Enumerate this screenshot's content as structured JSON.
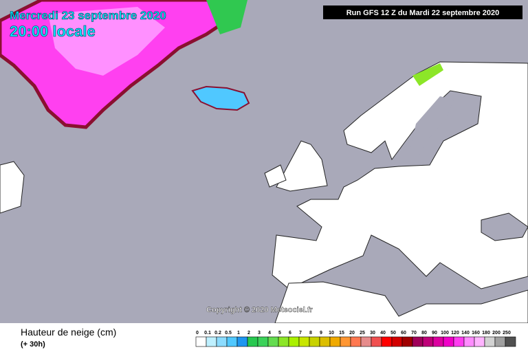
{
  "header": {
    "date": "Mercredi 23 septembre 2020",
    "time": "20:00 locale",
    "run": "Run GFS 12 Z du Mardi 22 septembre 2020"
  },
  "copyright": "Copyright © 2020 Meteociel.fr",
  "legend": {
    "title": "Hauteur de neige (cm)",
    "subtitle": "(+ 30h)",
    "labels": [
      0,
      0.1,
      0.2,
      0.5,
      1,
      2,
      3,
      4,
      5,
      6,
      7,
      8,
      9,
      10,
      15,
      20,
      25,
      30,
      40,
      50,
      60,
      70,
      80,
      90,
      100,
      120,
      140,
      160,
      180,
      200,
      250
    ],
    "colors": [
      "#ffffff",
      "#bef0ff",
      "#8cdcff",
      "#50c8ff",
      "#1e96f0",
      "#28c850",
      "#3cd25a",
      "#64dc50",
      "#8ce628",
      "#aaf000",
      "#c8e600",
      "#c8d200",
      "#dcbe00",
      "#f0aa00",
      "#ff9632",
      "#ff7850",
      "#e68c8c",
      "#f05050",
      "#ff0000",
      "#d20000",
      "#a00000",
      "#a0005a",
      "#be0078",
      "#dc00a0",
      "#f000c8",
      "#ff3cf0",
      "#ff8cff",
      "#ffb4ff",
      "#d2d2d2",
      "#a0a0a0",
      "#505050"
    ]
  }
}
